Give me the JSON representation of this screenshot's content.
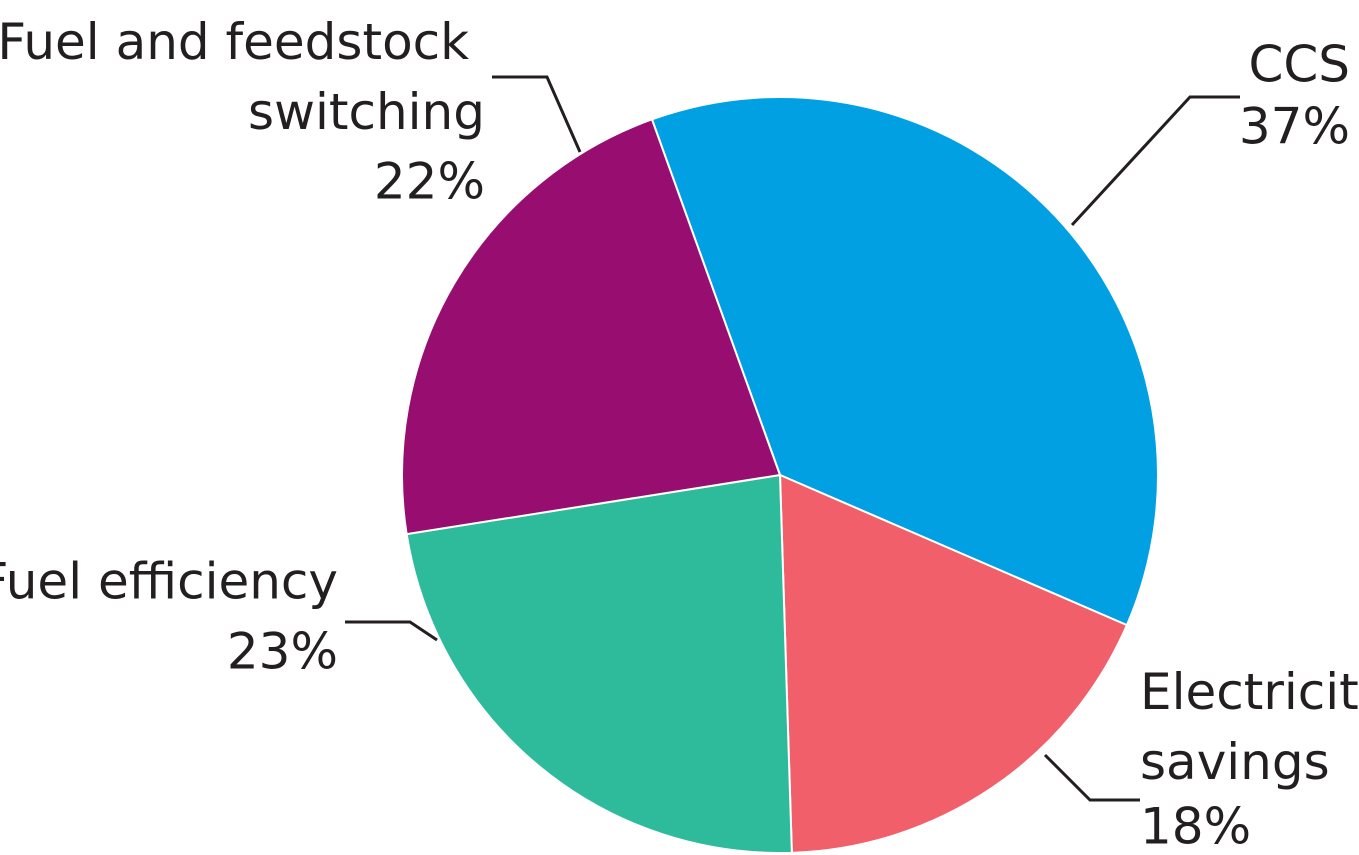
{
  "chart_data": {
    "type": "pie",
    "categories": [
      "CCS",
      "Electricity savings",
      "Fuel efficiency",
      "Fuel and feedstock switching"
    ],
    "values": [
      37,
      18,
      23,
      22
    ],
    "value_labels": [
      "37%",
      "18%",
      "23%",
      "22%"
    ],
    "colors": [
      "#00a0e3",
      "#f05f6a",
      "#2dbb9c",
      "#970d70"
    ]
  }
}
